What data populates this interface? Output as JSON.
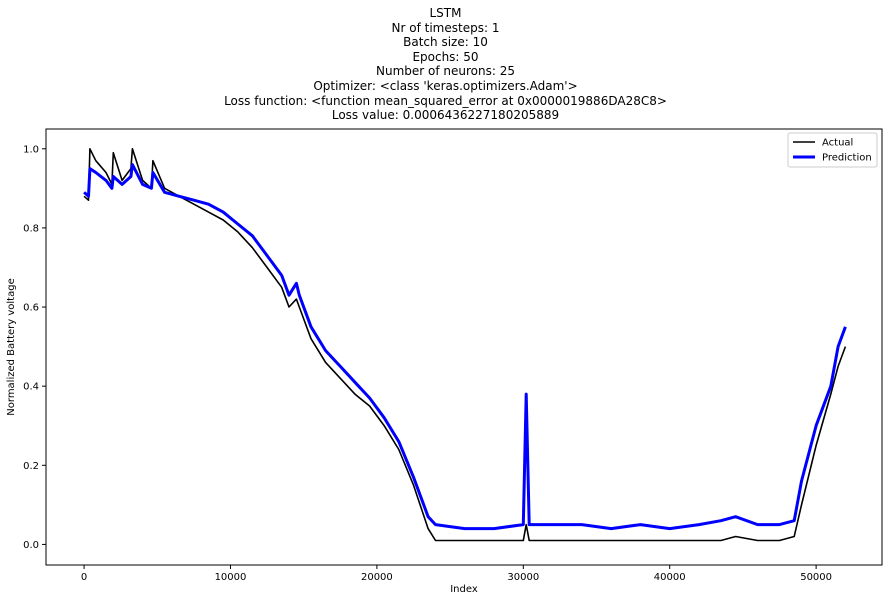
{
  "chart_data": {
    "type": "line",
    "title_lines": [
      "LSTM",
      "Nr of timesteps: 1",
      "Batch size: 10",
      "Epochs: 50",
      "Number of neurons: 25",
      "Optimizer: <class 'keras.optimizers.Adam'>",
      "Loss function: <function mean_squared_error at 0x0000019886DA28C8>",
      "Loss value: 0.0006436227180205889"
    ],
    "xlabel": "Index",
    "ylabel": "Normalized Battery voltage",
    "xlim": [
      -2600,
      54500
    ],
    "ylim": [
      -0.052,
      1.05
    ],
    "xticks": [
      0,
      10000,
      20000,
      30000,
      40000,
      50000
    ],
    "xtick_labels": [
      "0",
      "10000",
      "20000",
      "30000",
      "40000",
      "50000"
    ],
    "yticks": [
      0.0,
      0.2,
      0.4,
      0.6,
      0.8,
      1.0
    ],
    "ytick_labels": [
      "0.0",
      "0.2",
      "0.4",
      "0.6",
      "0.8",
      "1.0"
    ],
    "grid": false,
    "legend_position": "top-right",
    "series": [
      {
        "name": "Actual",
        "color": "#000000",
        "x": [
          0,
          300,
          400,
          800,
          1500,
          1900,
          2000,
          2600,
          3200,
          3300,
          4000,
          4600,
          4700,
          5500,
          6500,
          7500,
          8500,
          9500,
          10500,
          11500,
          12500,
          13500,
          14000,
          14500,
          14700,
          15500,
          16500,
          17500,
          18500,
          19500,
          20500,
          21500,
          22500,
          23500,
          24000,
          26000,
          28000,
          30000,
          30200,
          30400,
          32000,
          34000,
          36000,
          38000,
          40000,
          42000,
          43500,
          44500,
          46000,
          47500,
          48500,
          49000,
          50000,
          51000,
          51500,
          52000
        ],
        "y": [
          0.88,
          0.87,
          1.0,
          0.97,
          0.94,
          0.91,
          0.99,
          0.92,
          0.95,
          1.0,
          0.92,
          0.9,
          0.97,
          0.9,
          0.88,
          0.86,
          0.84,
          0.82,
          0.79,
          0.75,
          0.7,
          0.65,
          0.6,
          0.62,
          0.6,
          0.52,
          0.46,
          0.42,
          0.38,
          0.35,
          0.3,
          0.24,
          0.15,
          0.04,
          0.01,
          0.01,
          0.01,
          0.01,
          0.05,
          0.01,
          0.01,
          0.01,
          0.01,
          0.01,
          0.01,
          0.01,
          0.01,
          0.02,
          0.01,
          0.01,
          0.02,
          0.1,
          0.25,
          0.38,
          0.45,
          0.5
        ]
      },
      {
        "name": "Prediction",
        "color": "#0000ff",
        "x": [
          0,
          300,
          400,
          800,
          1500,
          1900,
          2000,
          2600,
          3200,
          3300,
          4000,
          4600,
          4700,
          5500,
          6500,
          7500,
          8500,
          9500,
          10500,
          11500,
          12500,
          13500,
          14000,
          14500,
          14700,
          15500,
          16500,
          17500,
          18500,
          19500,
          20500,
          21500,
          22500,
          23500,
          24000,
          26000,
          28000,
          30000,
          30200,
          30400,
          32000,
          34000,
          36000,
          38000,
          40000,
          42000,
          43500,
          44500,
          46000,
          47500,
          48500,
          49000,
          50000,
          51000,
          51500,
          52000
        ],
        "y": [
          0.89,
          0.88,
          0.95,
          0.94,
          0.92,
          0.9,
          0.93,
          0.91,
          0.93,
          0.96,
          0.91,
          0.9,
          0.94,
          0.89,
          0.88,
          0.87,
          0.86,
          0.84,
          0.81,
          0.78,
          0.73,
          0.68,
          0.63,
          0.66,
          0.63,
          0.55,
          0.49,
          0.45,
          0.41,
          0.37,
          0.32,
          0.26,
          0.17,
          0.07,
          0.05,
          0.04,
          0.04,
          0.05,
          0.38,
          0.05,
          0.05,
          0.05,
          0.04,
          0.05,
          0.04,
          0.05,
          0.06,
          0.07,
          0.05,
          0.05,
          0.06,
          0.16,
          0.3,
          0.4,
          0.5,
          0.55
        ]
      }
    ]
  }
}
